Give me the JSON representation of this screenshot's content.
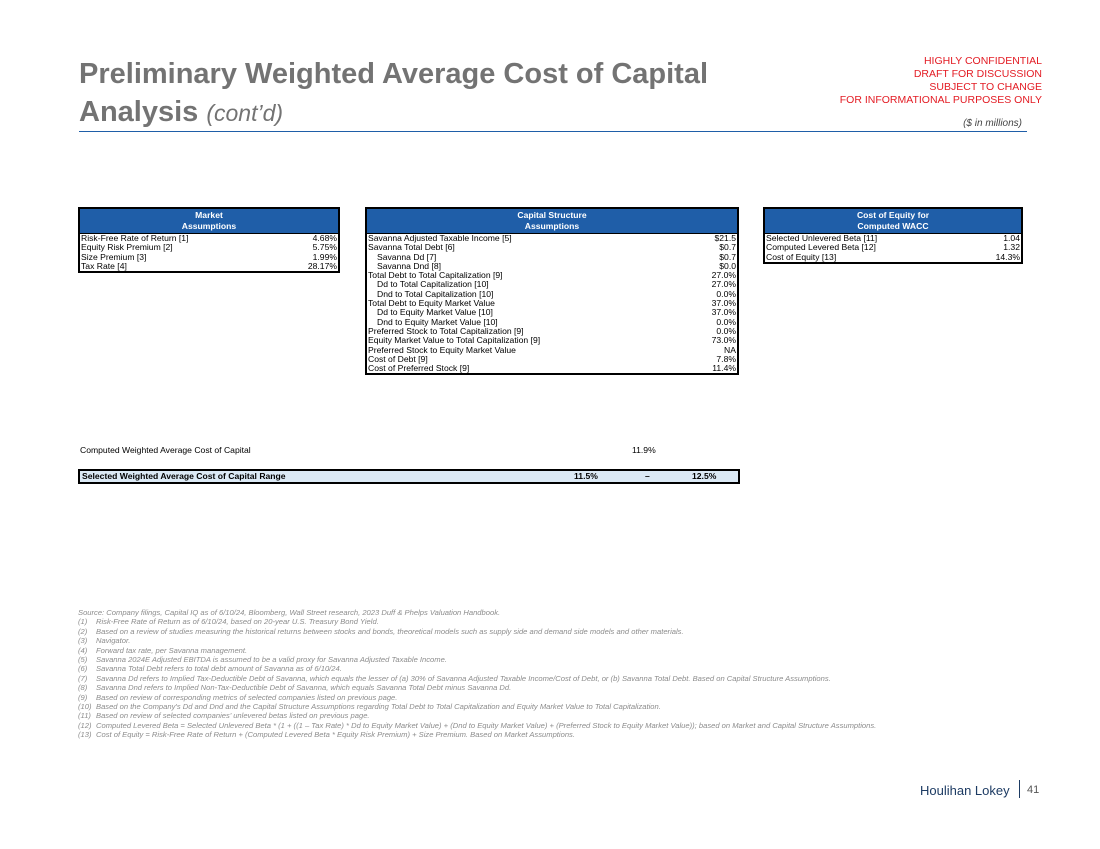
{
  "header": {
    "title": "Preliminary Weighted Average Cost of Capital Analysis",
    "title_suffix": "(cont’d)",
    "confidential": [
      "HIGHLY CONFIDENTIAL",
      "DRAFT FOR DISCUSSION",
      "SUBJECT TO CHANGE",
      "FOR INFORMATIONAL PURPOSES ONLY"
    ],
    "units": "($ in millions)"
  },
  "market": {
    "title": [
      "Market",
      "Assumptions"
    ],
    "rows": [
      {
        "label": "Risk-Free Rate of Return [1]",
        "value": "4.68%"
      },
      {
        "label": "Equity Risk Premium [2]",
        "value": "5.75%"
      },
      {
        "label": "Size Premium [3]",
        "value": "1.99%"
      },
      {
        "label": "Tax Rate [4]",
        "value": "28.17%"
      }
    ]
  },
  "capital": {
    "title": [
      "Capital Structure",
      "Assumptions"
    ],
    "rows": [
      {
        "label": "Savanna Adjusted Taxable Income [5]",
        "value": "$21.5"
      },
      {
        "label": "Savanna Total Debt [6]",
        "value": "$0.7"
      },
      {
        "label": "Savanna Dd [7]",
        "value": "$0.7"
      },
      {
        "label": "Savanna Dnd [8]",
        "value": "$0.0"
      },
      {
        "label": "Total Debt to Total Capitalization [9]",
        "value": "27.0%"
      },
      {
        "label": "Dd to Total Capitalization [10]",
        "value": "27.0%"
      },
      {
        "label": "Dnd to Total Capitalization [10]",
        "value": "0.0%"
      },
      {
        "label": "Total Debt to Equity Market Value",
        "value": "37.0%"
      },
      {
        "label": "Dd to Equity Market Value [10]",
        "value": "37.0%"
      },
      {
        "label": "Dnd to Equity Market Value [10]",
        "value": "0.0%"
      },
      {
        "label": "Preferred Stock to Total Capitalization [9]",
        "value": "0.0%"
      },
      {
        "label": "Equity Market Value to Total Capitalization [9]",
        "value": "73.0%"
      },
      {
        "label": "Preferred Stock to Equity Market Value",
        "value": "NA"
      },
      {
        "label": "Cost of Debt [9]",
        "value": "7.8%"
      },
      {
        "label": "Cost of Preferred Stock [9]",
        "value": "11.4%"
      }
    ]
  },
  "equity": {
    "title": [
      "Cost of Equity for",
      "Computed WACC"
    ],
    "rows": [
      {
        "label": "Selected Unlevered Beta [11]",
        "value": "1.04"
      },
      {
        "label": "Computed Levered Beta [12]",
        "value": "1.32"
      },
      {
        "label": "Cost of Equity [13]",
        "value": "14.3%"
      }
    ]
  },
  "wacc": {
    "label": "Computed Weighted Average Cost of Capital",
    "value": "11.9%",
    "range_label": "Selected Weighted Average Cost of Capital Range",
    "range_low": "11.5%",
    "range_sep": "–",
    "range_high": "12.5%"
  },
  "notes": {
    "source": "Source: Company filings, Capital IQ as of 6/10/24, Bloomberg, Wall Street research, 2023 Duff & Phelps Valuation Handbook.",
    "items": [
      {
        "num": "(1)",
        "text": "Risk-Free Rate of Return as of 6/10/24, based on 20-year U.S. Treasury Bond Yield."
      },
      {
        "num": "(2)",
        "text": "Based on a review of studies measuring the historical returns between stocks and bonds, theoretical models such as supply side and demand side models and other materials."
      },
      {
        "num": "(3)",
        "text": "Navigator."
      },
      {
        "num": "(4)",
        "text": "Forward tax rate, per Savanna management."
      },
      {
        "num": "(5)",
        "text": "Savanna 2024E Adjusted EBITDA is assumed to be a valid proxy for Savanna Adjusted Taxable Income."
      },
      {
        "num": "(6)",
        "text": "Savanna Total Debt refers to total debt amount of Savanna as of 6/10/24."
      },
      {
        "num": "(7)",
        "text": "Savanna Dd refers to Implied Tax-Deductible Debt of Savanna, which equals the lesser of (a) 30% of Savanna Adjusted Taxable Income/Cost of Debt, or (b) Savanna Total Debt. Based on Capital Structure Assumptions."
      },
      {
        "num": "(8)",
        "text": "Savanna Dnd refers to Implied Non-Tax-Deductible Debt of Savanna, which equals Savanna Total Debt minus Savanna Dd."
      },
      {
        "num": "(9)",
        "text": "Based on review of corresponding metrics of selected companies listed on previous page."
      },
      {
        "num": "(10)",
        "text": "Based on the Company's Dd and Dnd and the Capital Structure Assumptions regarding Total Debt to Total Capitalization and Equity Market Value to Total Capitalization."
      },
      {
        "num": "(11)",
        "text": "Based on review of selected companies’ unlevered betas listed on previous page."
      },
      {
        "num": "(12)",
        "text": "Computed Levered Beta = Selected Unlevered Beta * (1 + ((1 – Tax Rate) * Dd to Equity Market Value) + (Dnd to Equity Market Value) + (Preferred Stock to Equity Market Value)); based on Market and Capital Structure Assumptions."
      },
      {
        "num": "(13)",
        "text": "Cost of Equity = Risk-Free Rate of Return + (Computed Levered Beta * Equity Risk Premium) + Size Premium. Based on Market Assumptions."
      }
    ]
  },
  "footer": {
    "logo": "Houlihan Lokey",
    "page": "41"
  }
}
